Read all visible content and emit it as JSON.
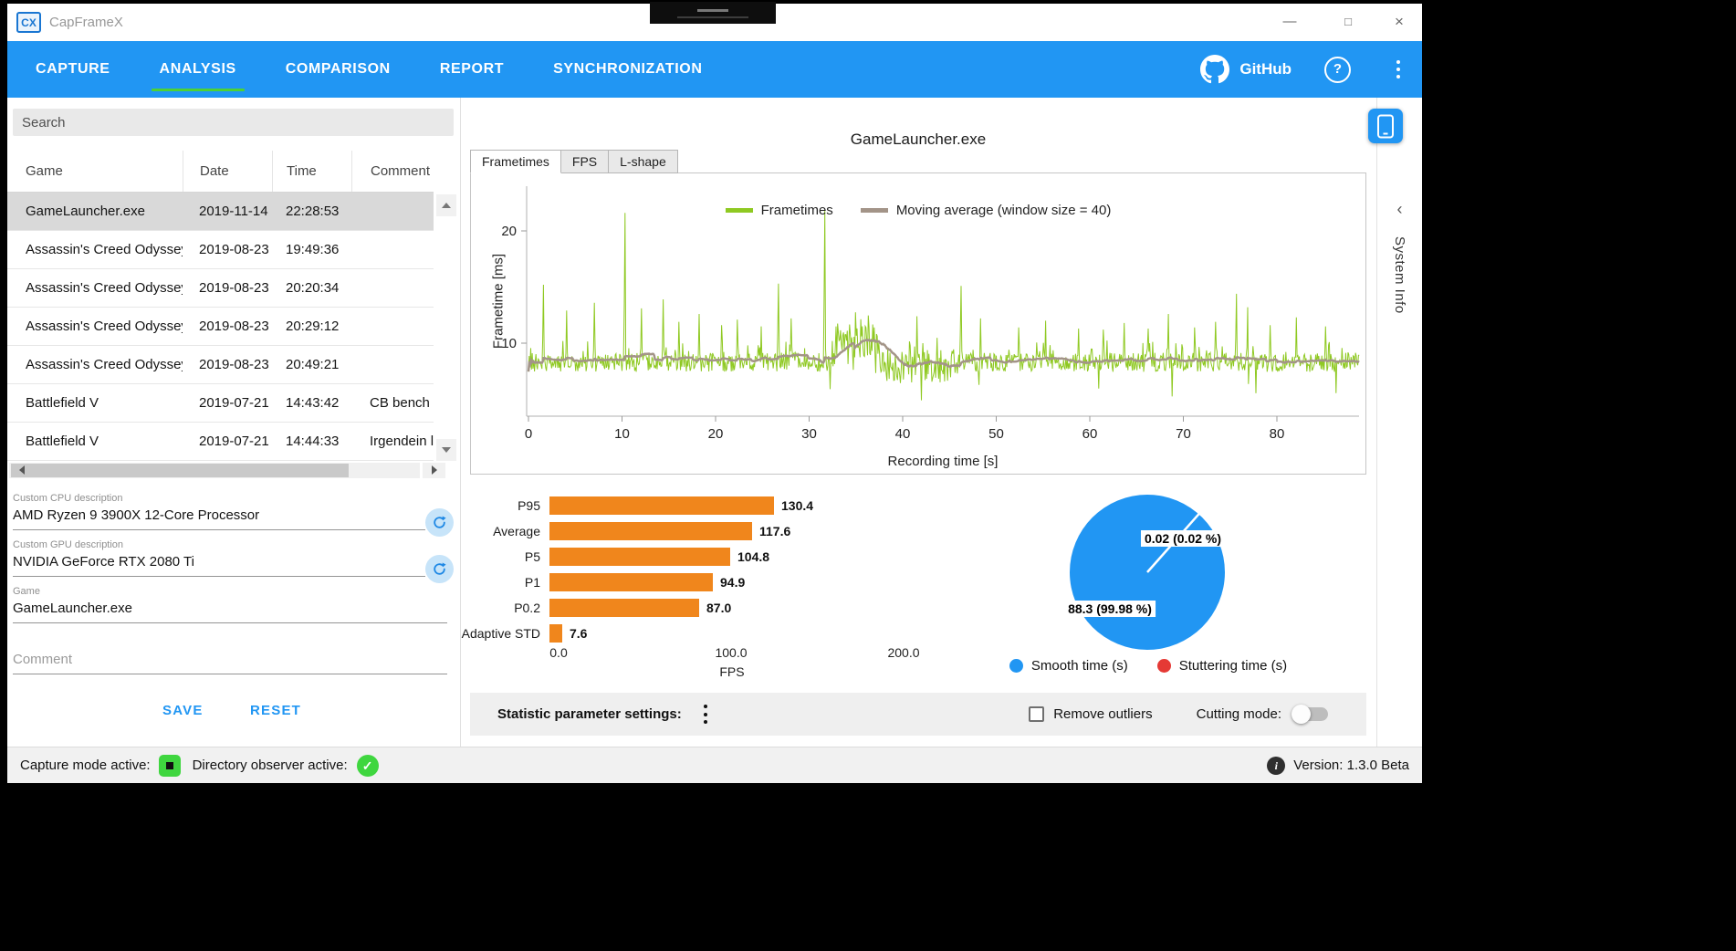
{
  "window": {
    "title": "CapFrameX"
  },
  "nav": {
    "items": [
      "CAPTURE",
      "ANALYSIS",
      "COMPARISON",
      "REPORT",
      "SYNCHRONIZATION"
    ],
    "active_index": 1,
    "github_label": "GitHub"
  },
  "sidebar": {
    "search_placeholder": "Search",
    "table": {
      "columns": [
        "Game",
        "Date",
        "Time",
        "Comment"
      ],
      "rows": [
        {
          "game": "GameLauncher.exe",
          "date": "2019-11-14",
          "time": "22:28:53",
          "comment": "",
          "selected": true
        },
        {
          "game": "Assassin's Creed Odyssey",
          "date": "2019-08-23",
          "time": "19:49:36",
          "comment": "",
          "selected": false
        },
        {
          "game": "Assassin's Creed Odyssey",
          "date": "2019-08-23",
          "time": "20:20:34",
          "comment": "",
          "selected": false
        },
        {
          "game": "Assassin's Creed Odyssey",
          "date": "2019-08-23",
          "time": "20:29:12",
          "comment": "",
          "selected": false
        },
        {
          "game": "Assassin's Creed Odyssey",
          "date": "2019-08-23",
          "time": "20:49:21",
          "comment": "",
          "selected": false
        },
        {
          "game": "Battlefield V",
          "date": "2019-07-21",
          "time": "14:43:42",
          "comment": "CB bench s",
          "selected": false
        },
        {
          "game": "Battlefield V",
          "date": "2019-07-21",
          "time": "14:44:33",
          "comment": "Irgendein la",
          "selected": false
        }
      ]
    },
    "fields": {
      "cpu": {
        "label": "Custom CPU description",
        "value": "AMD Ryzen 9 3900X 12-Core Processor"
      },
      "gpu": {
        "label": "Custom GPU description",
        "value": "NVIDIA GeForce RTX 2080 Ti"
      },
      "game": {
        "label": "Game",
        "value": "GameLauncher.exe"
      },
      "comment_placeholder": "Comment"
    },
    "buttons": {
      "save": "SAVE",
      "reset": "RESET"
    }
  },
  "main": {
    "record_title": "GameLauncher.exe",
    "tabs": [
      {
        "label": "Frametimes"
      },
      {
        "label": "FPS"
      },
      {
        "label": "L-shape"
      }
    ],
    "active_tab_index": 0
  },
  "chart_data": [
    {
      "type": "line",
      "name": "frametime-graph",
      "xlabel": "Recording time [s]",
      "ylabel": "Frametime [ms]",
      "xlim": [
        0,
        88.8
      ],
      "ylim": [
        3.5,
        24
      ],
      "xticks": [
        0,
        10,
        20,
        30,
        40,
        50,
        60,
        70,
        80
      ],
      "yticks": [
        10,
        20
      ],
      "legend": [
        {
          "label": "Frametimes",
          "color": "#8fc922"
        },
        {
          "label": "Moving average (window size = 40)",
          "color": "#a39488"
        }
      ],
      "series_spec": {
        "sample_step_s": 0.08,
        "baseline_ms": 8.3,
        "noise_ms": 0.85,
        "regions": [
          {
            "from": 32.8,
            "to": 37.6,
            "baseline_ms": 10.2,
            "noise_ms": 1.5
          },
          {
            "from": 37.6,
            "to": 46.0,
            "baseline_ms": 7.9,
            "noise_ms": 1.5
          }
        ],
        "spikes": [
          [
            1.6,
            15.2
          ],
          [
            4.1,
            12.9
          ],
          [
            7.0,
            13.6
          ],
          [
            10.3,
            21.6
          ],
          [
            12.1,
            13.1
          ],
          [
            14.4,
            13.9
          ],
          [
            16.1,
            11.9
          ],
          [
            18.2,
            12.6
          ],
          [
            20.6,
            11.6
          ],
          [
            22.3,
            12.1
          ],
          [
            24.9,
            11.5
          ],
          [
            26.7,
            15.3
          ],
          [
            28.1,
            12.2
          ],
          [
            31.7,
            21.8
          ],
          [
            41.5,
            12.4
          ],
          [
            46.2,
            15.1
          ],
          [
            48.3,
            12.2
          ],
          [
            52.4,
            11.4
          ],
          [
            55.3,
            12.0
          ],
          [
            58.8,
            11.3
          ],
          [
            61.4,
            11.2
          ],
          [
            63.7,
            11.8
          ],
          [
            66.2,
            11.3
          ],
          [
            68.4,
            12.6
          ],
          [
            71.2,
            11.4
          ],
          [
            73.4,
            11.9
          ],
          [
            75.7,
            14.4
          ],
          [
            76.9,
            13.2
          ],
          [
            79.3,
            11.6
          ],
          [
            82.1,
            12.3
          ],
          [
            85.2,
            11.5
          ]
        ],
        "moving_average_window": 40
      }
    },
    {
      "type": "bar",
      "name": "fps-percentiles",
      "orientation": "horizontal",
      "categories": [
        "P95",
        "Average",
        "P5",
        "P1",
        "P0.2",
        "Adaptive STD"
      ],
      "values": [
        130.4,
        117.6,
        104.8,
        94.9,
        87.0,
        7.6
      ],
      "value_labels": [
        "130.4",
        "117.6",
        "104.8",
        "94.9",
        "87.0",
        "7.6"
      ],
      "xlabel": "FPS",
      "xticks": [
        "0.0",
        "100.0",
        "200.0"
      ],
      "xlim": [
        0,
        200
      ],
      "bar_color": "#f0861c"
    },
    {
      "type": "pie",
      "name": "stuttering-pie",
      "slices": [
        {
          "label": "Smooth time (s)",
          "value": 88.3,
          "display": "88.3 (99.98 %)",
          "color": "#2196f3"
        },
        {
          "label": "Stuttering time (s)",
          "value": 0.02,
          "display": "0.02 (0.02 %)",
          "color": "#e53935"
        }
      ]
    }
  ],
  "settings_bar": {
    "label": "Statistic parameter settings:",
    "remove_outliers_label": "Remove outliers",
    "remove_outliers_checked": false,
    "cutting_mode_label": "Cutting mode:",
    "cutting_mode_on": false
  },
  "side_panel": {
    "label": "System Info"
  },
  "status_bar": {
    "capture_mode_label": "Capture mode active:",
    "observer_label": "Directory observer active:",
    "version_label": "Version: 1.3.0 Beta"
  },
  "colors": {
    "nav_blue": "#2196f3",
    "accent_green": "#4cd137",
    "chart_green": "#8fc922",
    "moving_avg_gray": "#a39488",
    "bar_orange": "#f0861c",
    "pie_blue": "#2196f3",
    "pie_red": "#e53935",
    "status_green": "#3fd63f"
  }
}
